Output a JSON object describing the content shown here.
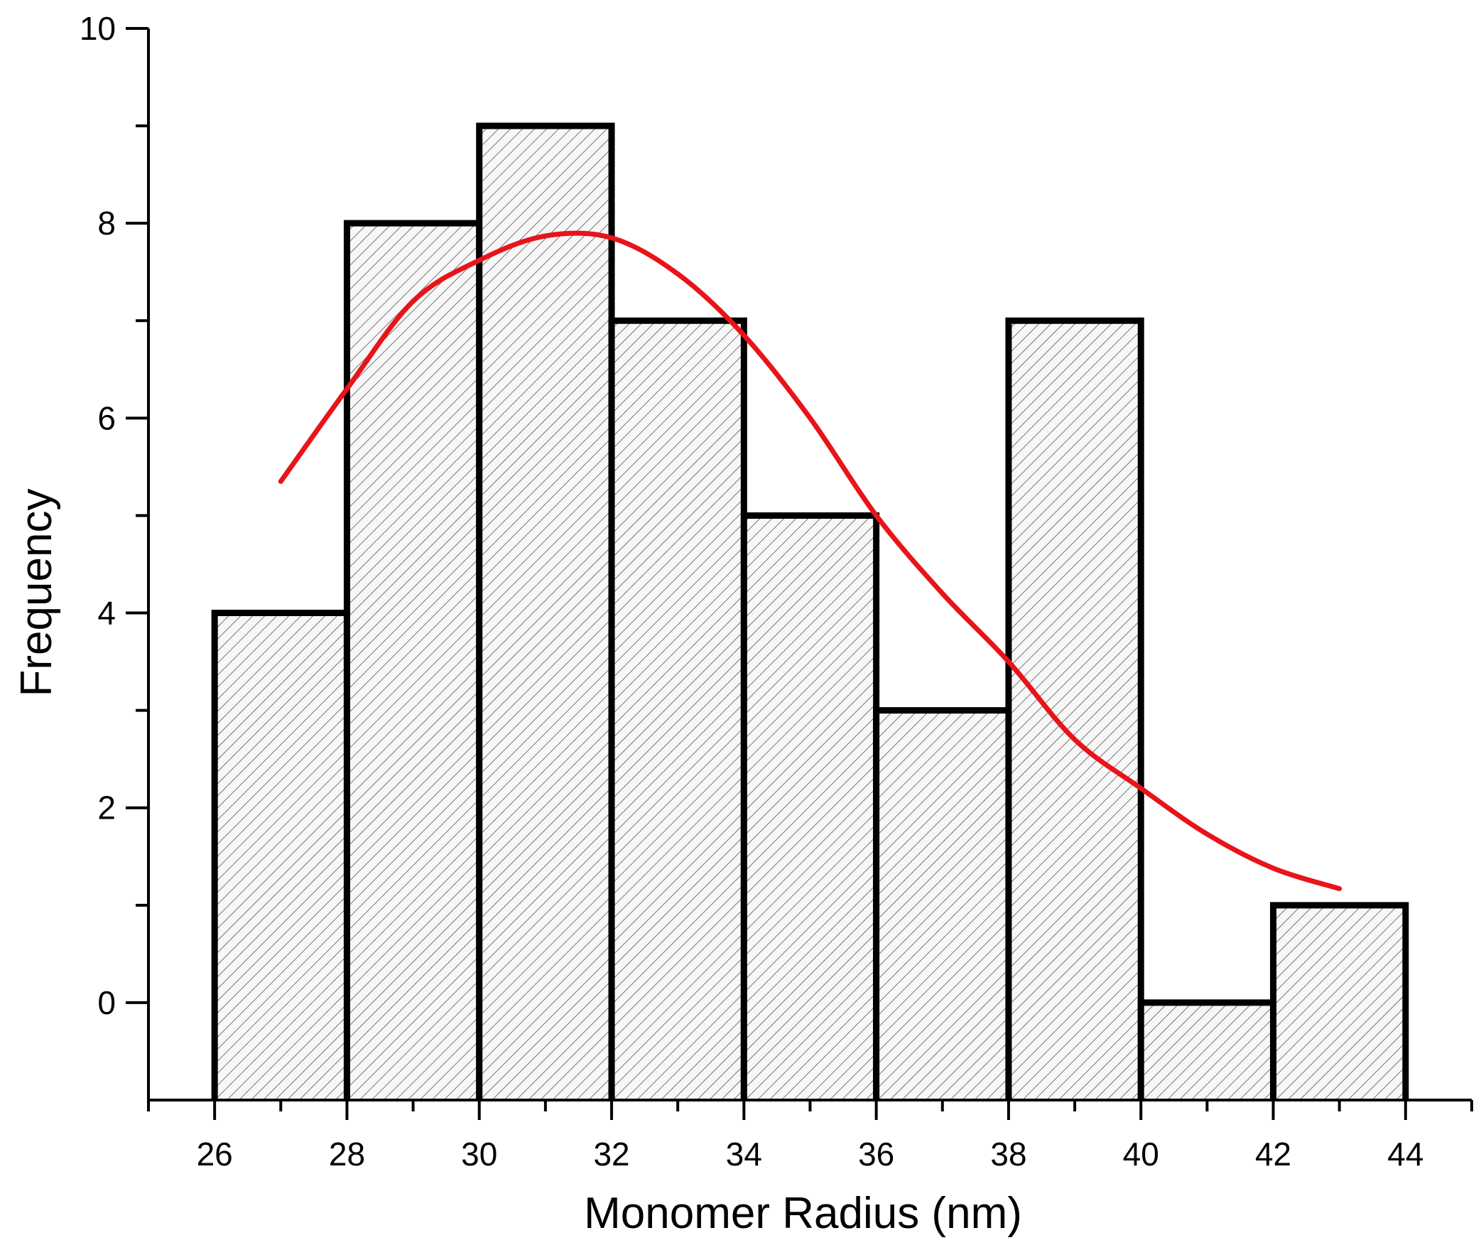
{
  "chart_data": {
    "type": "bar",
    "subtype": "histogram",
    "title": "",
    "xlabel": "Monomer Radius (nm)",
    "ylabel": "Frequency",
    "bins": [
      {
        "start": 26,
        "end": 28,
        "value": 4
      },
      {
        "start": 28,
        "end": 30,
        "value": 8
      },
      {
        "start": 30,
        "end": 32,
        "value": 9
      },
      {
        "start": 32,
        "end": 34,
        "value": 7
      },
      {
        "start": 34,
        "end": 36,
        "value": 5
      },
      {
        "start": 36,
        "end": 38,
        "value": 3
      },
      {
        "start": 38,
        "end": 40,
        "value": 7
      },
      {
        "start": 40,
        "end": 42,
        "value": 0
      },
      {
        "start": 42,
        "end": 44,
        "value": 1
      }
    ],
    "xlim": [
      25,
      45
    ],
    "ylim": [
      -1,
      10
    ],
    "x_ticks": [
      "26",
      "28",
      "30",
      "32",
      "34",
      "36",
      "38",
      "40",
      "42",
      "44"
    ],
    "y_ticks": [
      "0",
      "2",
      "4",
      "6",
      "8",
      "10"
    ],
    "fit_curve": {
      "type": "gaussian",
      "color": "#e8141a",
      "points": [
        [
          27,
          5.35
        ],
        [
          28,
          6.3
        ],
        [
          29,
          7.2
        ],
        [
          30,
          7.62
        ],
        [
          31,
          7.87
        ],
        [
          32,
          7.85
        ],
        [
          33,
          7.48
        ],
        [
          34,
          6.85
        ],
        [
          35,
          6.0
        ],
        [
          36,
          5.0
        ],
        [
          37,
          4.2
        ],
        [
          38,
          3.5
        ],
        [
          39,
          2.7
        ],
        [
          40,
          2.2
        ],
        [
          41,
          1.73
        ],
        [
          42,
          1.38
        ],
        [
          43,
          1.17
        ]
      ]
    },
    "bar_fill": "#f7f7f7",
    "hatch_color": "#555555",
    "edge_color": "#000000"
  }
}
